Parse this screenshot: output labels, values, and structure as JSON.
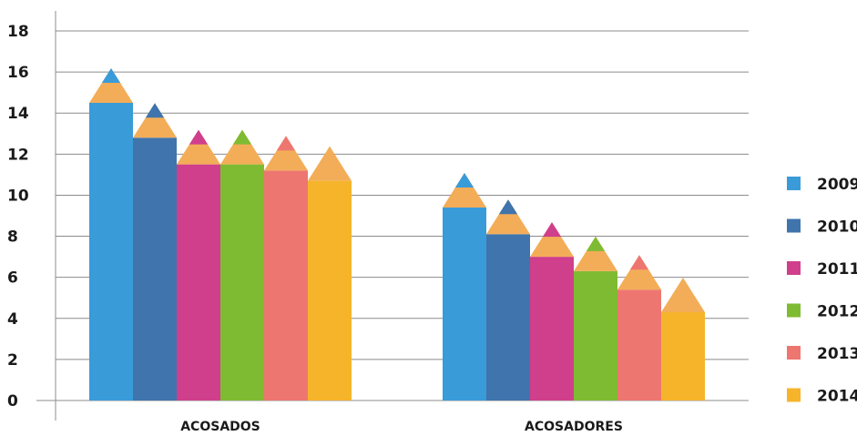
{
  "chart_data": {
    "type": "bar",
    "title": "",
    "xlabel": "",
    "ylabel": "",
    "ylim": [
      0,
      18
    ],
    "yticks": [
      0,
      2,
      4,
      6,
      8,
      10,
      12,
      14,
      16,
      18
    ],
    "grid": true,
    "legend_position": "right",
    "categories": [
      "ACOSADOS",
      "ACOSADORES"
    ],
    "series": [
      {
        "name": "2009",
        "color": "#3a9bd9",
        "values": [
          14.5,
          9.4
        ]
      },
      {
        "name": "2010",
        "color": "#3f74ac",
        "values": [
          12.8,
          8.1
        ]
      },
      {
        "name": "2011",
        "color": "#cf3f8c",
        "values": [
          11.5,
          7.0
        ]
      },
      {
        "name": "2012",
        "color": "#7fbb32",
        "values": [
          11.5,
          6.3
        ]
      },
      {
        "name": "2013",
        "color": "#ee7670",
        "values": [
          11.2,
          5.4
        ]
      },
      {
        "name": "2014",
        "color": "#f6b42b",
        "values": [
          10.7,
          4.3
        ]
      }
    ],
    "tip_color": "#f3ad58"
  }
}
